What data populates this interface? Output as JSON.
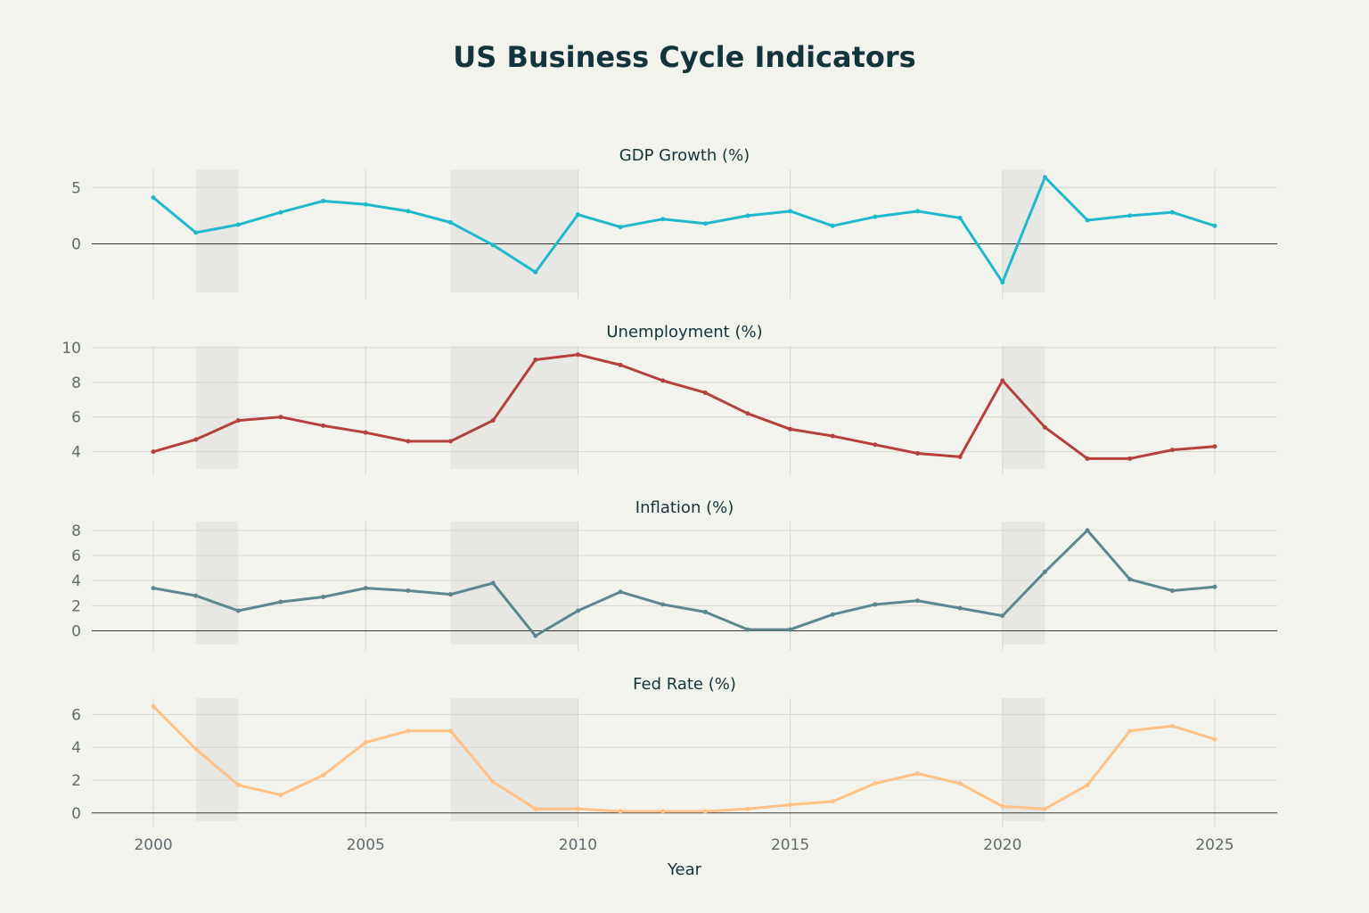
{
  "chart_data": {
    "type": "line",
    "title": "US Business Cycle Indicators",
    "xlabel": "Year",
    "x": [
      2000,
      2001,
      2002,
      2003,
      2004,
      2005,
      2006,
      2007,
      2008,
      2009,
      2010,
      2011,
      2012,
      2013,
      2014,
      2015,
      2016,
      2017,
      2018,
      2019,
      2020,
      2021,
      2022,
      2023,
      2024,
      2025
    ],
    "xlim": [
      1998.55,
      2026.47
    ],
    "xticks": [
      2000,
      2005,
      2010,
      2015,
      2020,
      2025
    ],
    "recessions": [
      [
        2001,
        2002
      ],
      [
        2007,
        2010
      ],
      [
        2020,
        2021
      ]
    ],
    "grid": true,
    "legend": "none",
    "panels": [
      {
        "name": "GDP Growth (%)",
        "color": "#1FB8CD",
        "ylim": [
          -4.3,
          6.6
        ],
        "yticks": [
          0,
          5
        ],
        "zero_line": true,
        "values": [
          4.1,
          1.0,
          1.7,
          2.8,
          3.8,
          3.5,
          2.9,
          1.9,
          -0.1,
          -2.5,
          2.6,
          1.5,
          2.2,
          1.8,
          2.5,
          2.9,
          1.6,
          2.4,
          2.9,
          2.3,
          -3.4,
          5.9,
          2.1,
          2.5,
          2.8,
          1.6
        ]
      },
      {
        "name": "Unemployment (%)",
        "color": "#B4413C",
        "ylim": [
          3.0,
          10.1
        ],
        "yticks": [
          4,
          6,
          8,
          10
        ],
        "zero_line": false,
        "values": [
          4.0,
          4.7,
          5.8,
          6.0,
          5.5,
          5.1,
          4.6,
          4.6,
          5.8,
          9.3,
          9.6,
          9.0,
          8.1,
          7.4,
          6.2,
          5.3,
          4.9,
          4.4,
          3.9,
          3.7,
          8.1,
          5.4,
          3.6,
          3.6,
          4.1,
          4.3
        ]
      },
      {
        "name": "Inflation (%)",
        "color": "#5D878F",
        "ylim": [
          -1.1,
          8.7
        ],
        "yticks": [
          0,
          2,
          4,
          6,
          8
        ],
        "zero_line": true,
        "values": [
          3.4,
          2.8,
          1.6,
          2.3,
          2.7,
          3.4,
          3.2,
          2.9,
          3.8,
          -0.4,
          1.6,
          3.1,
          2.1,
          1.5,
          0.1,
          0.1,
          1.3,
          2.1,
          2.4,
          1.8,
          1.2,
          4.7,
          8.0,
          4.1,
          3.2,
          3.5
        ]
      },
      {
        "name": "Fed Rate (%)",
        "color": "#FFC185",
        "ylim": [
          -0.5,
          7.0
        ],
        "yticks": [
          0,
          2,
          4,
          6
        ],
        "zero_line": true,
        "values": [
          6.5,
          3.9,
          1.7,
          1.1,
          2.3,
          4.3,
          5.0,
          5.0,
          1.9,
          0.25,
          0.25,
          0.1,
          0.1,
          0.1,
          0.25,
          0.5,
          0.7,
          1.8,
          2.4,
          1.8,
          0.4,
          0.25,
          1.7,
          5.0,
          5.3,
          4.5
        ]
      }
    ]
  }
}
